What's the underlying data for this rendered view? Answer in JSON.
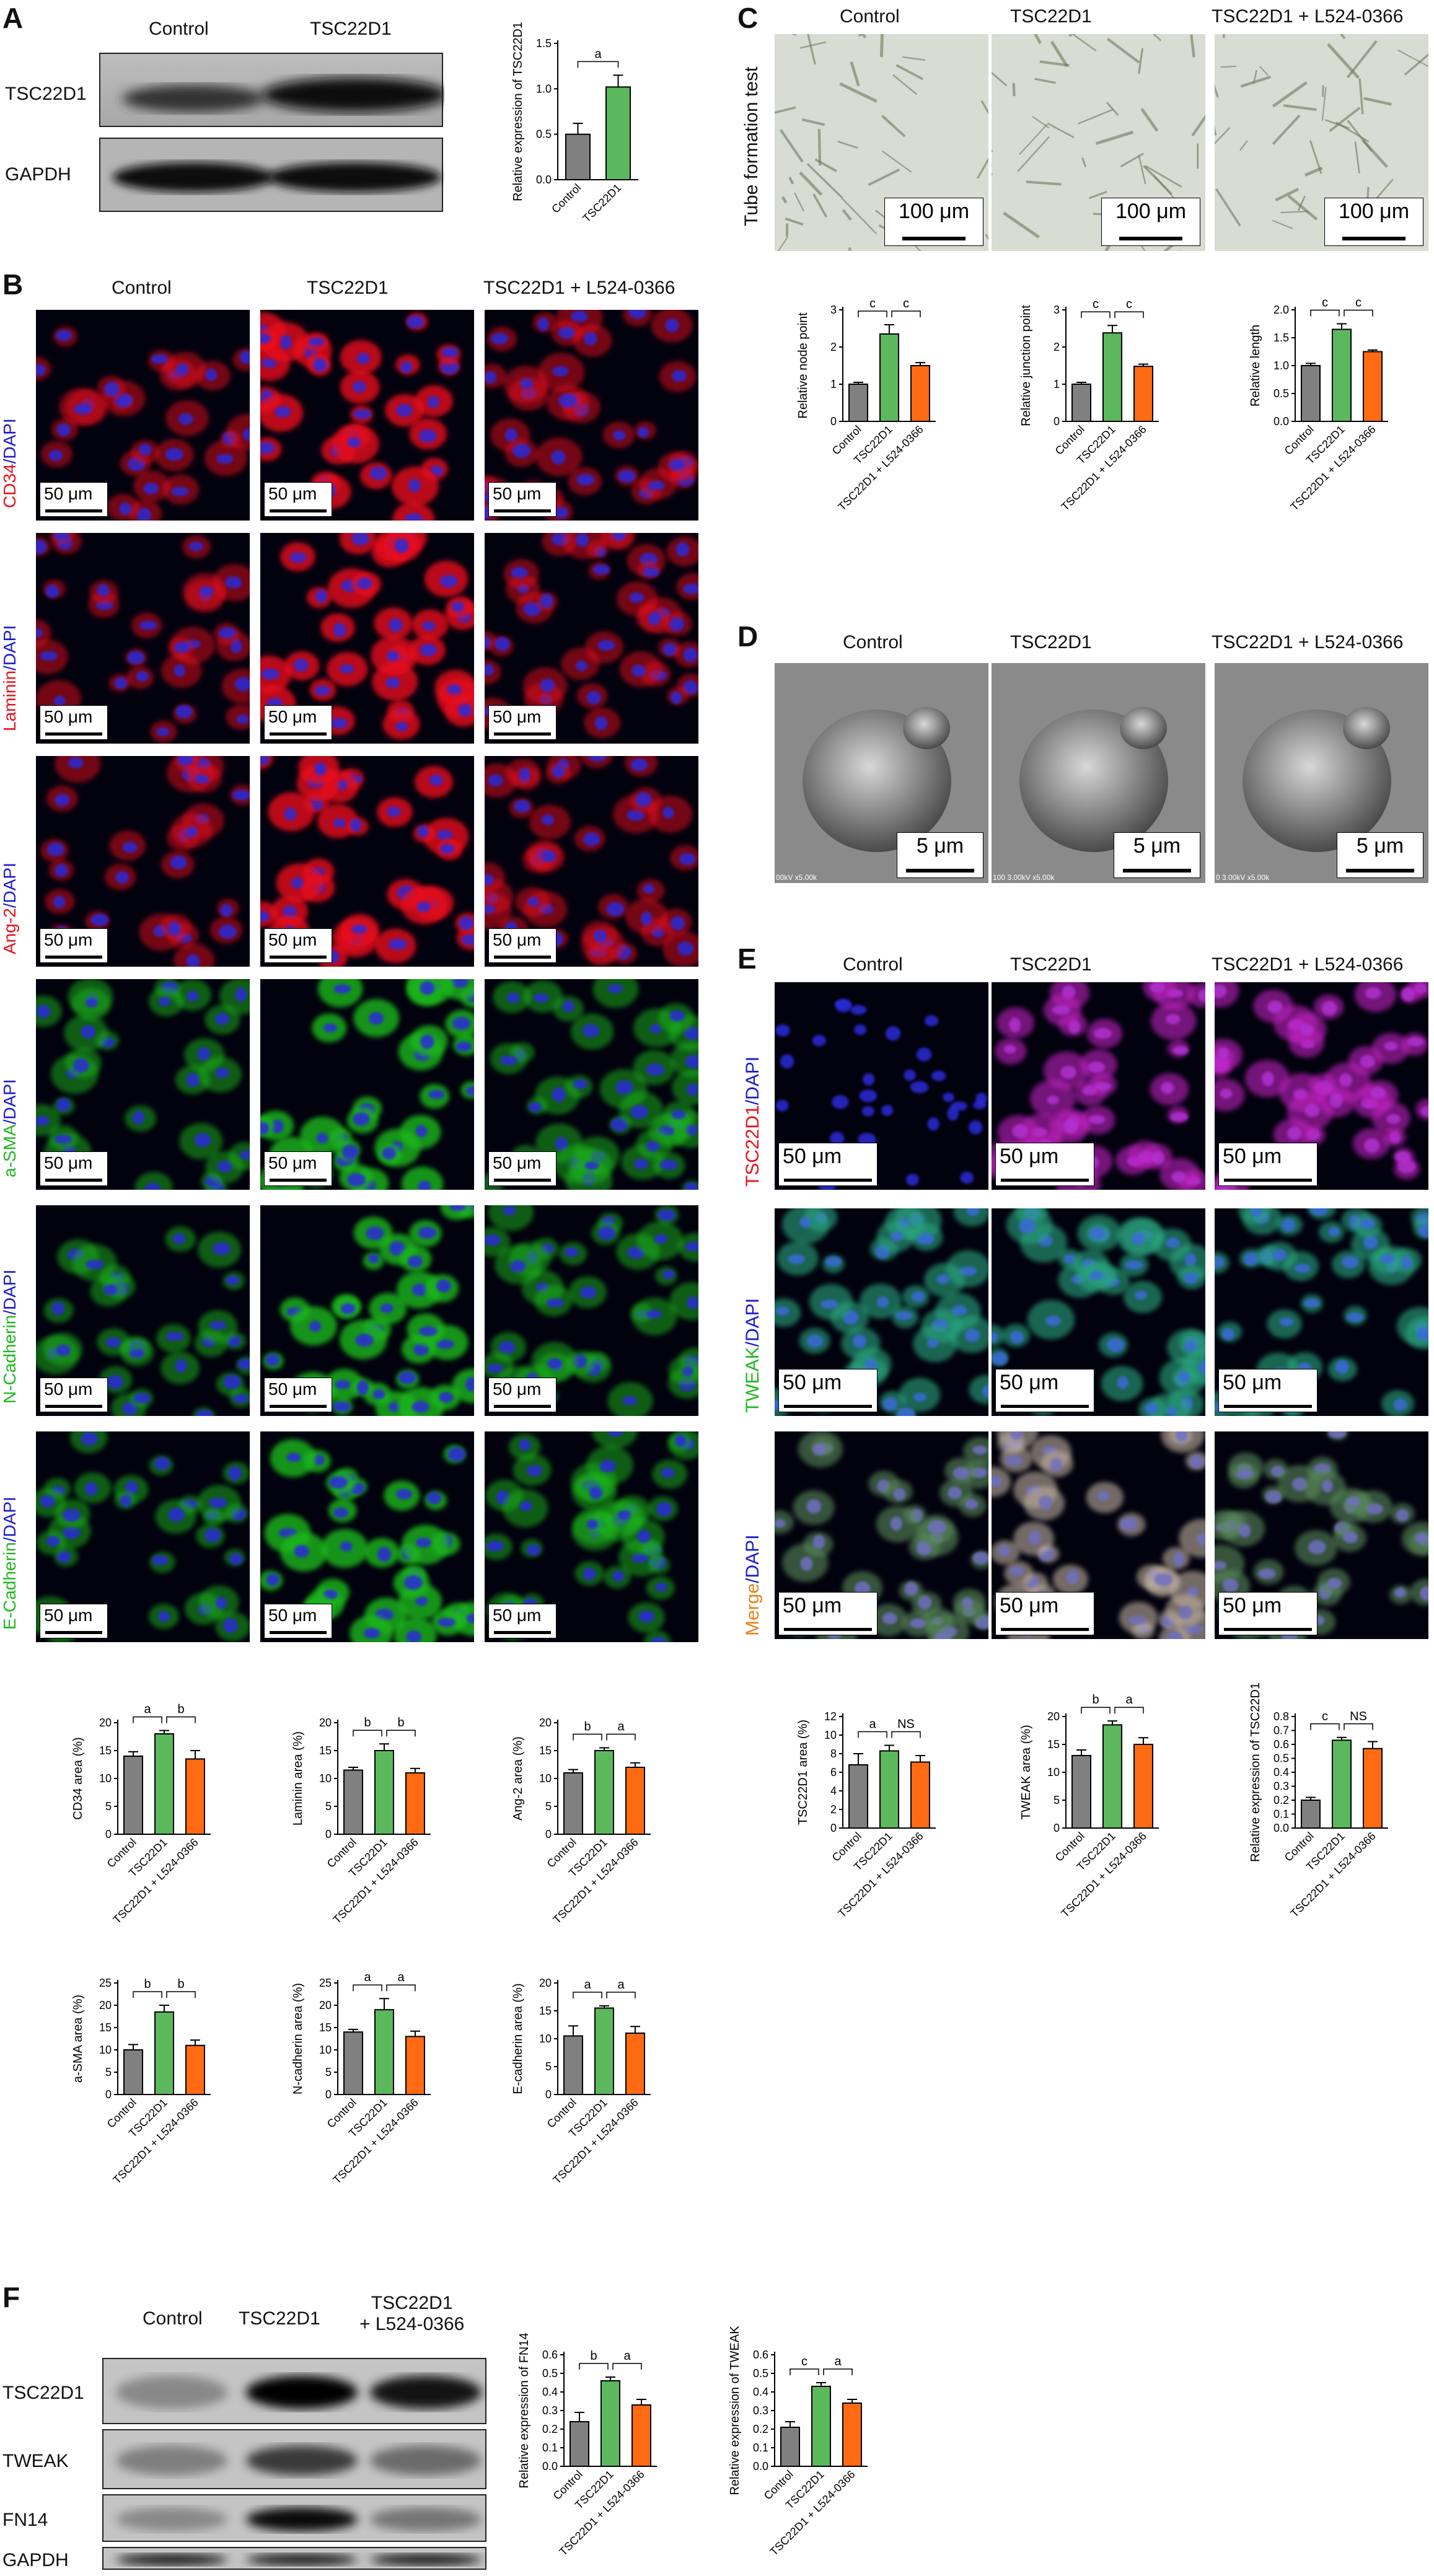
{
  "colors": {
    "control": "#808080",
    "tsc22d1": "#5cb85c",
    "inhibitor": "#ff6a13",
    "fluor_red": "#e8101a",
    "fluor_green": "#1fb81f",
    "fluor_blue": "#1a1ad0",
    "merge_orange": "#e8801a"
  },
  "panels": {
    "A": "A",
    "B": "B",
    "C": "C",
    "D": "D",
    "E": "E",
    "F": "F"
  },
  "panelA": {
    "headers": [
      "Control",
      "TSC22D1"
    ],
    "rows": [
      "TSC22D1",
      "GAPDH"
    ]
  },
  "panelB": {
    "headers": [
      "Control",
      "TSC22D1",
      "TSC22D1 + L524-0366"
    ],
    "rows": [
      {
        "marker": "CD34",
        "stain": "/DAPI",
        "color": "red"
      },
      {
        "marker": "Laminin",
        "stain": "/DAPI",
        "color": "red"
      },
      {
        "marker": "Ang-2",
        "stain": "/DAPI",
        "color": "red"
      },
      {
        "marker": "a-SMA",
        "stain": "/DAPI",
        "color": "green"
      },
      {
        "marker": "N-Cadherin",
        "stain": "/DAPI",
        "color": "green"
      },
      {
        "marker": "E-Cadherin",
        "stain": "/DAPI",
        "color": "green"
      }
    ],
    "scalebar": "50 μm"
  },
  "panelC": {
    "headers": [
      "Control",
      "TSC22D1",
      "TSC22D1 + L524-0366"
    ],
    "side_label": "Tube formation test",
    "scalebar": "100 μm"
  },
  "panelD": {
    "headers": [
      "Control",
      "TSC22D1",
      "TSC22D1 + L524-0366"
    ],
    "scalebar": "5 μm",
    "footers": [
      "00kV x5.00k",
      "100 3.00kV x5.00k",
      "0 3.00kV x5.00k"
    ]
  },
  "panelE": {
    "headers": [
      "Control",
      "TSC22D1",
      "TSC22D1 + L524-0366"
    ],
    "rows": [
      {
        "marker": "TSC22D1",
        "stain": "/DAPI",
        "color": "red"
      },
      {
        "marker": "TWEAK",
        "stain": "/DAPI",
        "color": "green"
      },
      {
        "marker": "Merge",
        "stain": "/DAPI",
        "color": "orange"
      }
    ],
    "scalebar": "50 μm"
  },
  "panelF": {
    "headers": [
      "Control",
      "TSC22D1",
      "TSC22D1\n+ L524-0366"
    ],
    "header_line1": "TSC22D1",
    "header_line2": "+ L524-0366",
    "rows": [
      "TSC22D1",
      "TWEAK",
      "FN14",
      "GAPDH"
    ]
  },
  "chart_data": [
    {
      "id": "A",
      "type": "bar",
      "categories": [
        "Control",
        "TSC22D1"
      ],
      "values": [
        0.5,
        1.02
      ],
      "errors": [
        0.12,
        0.13
      ],
      "ylabel": "Relative expression of TSC22D1",
      "ylim": [
        0,
        1.5
      ],
      "yticks": [
        "0.0",
        "0.5",
        "1.0",
        "1.5"
      ],
      "sig": [
        {
          "from": 0,
          "to": 1,
          "label": "a"
        }
      ]
    },
    {
      "id": "C1",
      "type": "bar",
      "categories": [
        "Control",
        "TSC22D1",
        "TSC22D1 + L524-0366"
      ],
      "values": [
        1.0,
        2.35,
        1.5
      ],
      "errors": [
        0.05,
        0.25,
        0.08
      ],
      "ylabel": "Relative node point",
      "ylim": [
        0,
        3
      ],
      "yticks": [
        "0",
        "1",
        "2",
        "3"
      ],
      "sig": [
        {
          "from": 0,
          "to": 1,
          "label": "c"
        },
        {
          "from": 1,
          "to": 2,
          "label": "c"
        }
      ]
    },
    {
      "id": "C2",
      "type": "bar",
      "categories": [
        "Control",
        "TSC22D1",
        "TSC22D1 + L524-0366"
      ],
      "values": [
        1.0,
        2.38,
        1.48
      ],
      "errors": [
        0.05,
        0.2,
        0.06
      ],
      "ylabel": "Relative junction point",
      "ylim": [
        0,
        3
      ],
      "yticks": [
        "0",
        "1",
        "2",
        "3"
      ],
      "sig": [
        {
          "from": 0,
          "to": 1,
          "label": "c"
        },
        {
          "from": 1,
          "to": 2,
          "label": "c"
        }
      ]
    },
    {
      "id": "C3",
      "type": "bar",
      "categories": [
        "Control",
        "TSC22D1",
        "TSC22D1 + L524-0366"
      ],
      "values": [
        1.0,
        1.65,
        1.25
      ],
      "errors": [
        0.04,
        0.1,
        0.03
      ],
      "ylabel": "Relative length",
      "ylim": [
        0,
        2.0
      ],
      "yticks": [
        "0.0",
        "0.5",
        "1.0",
        "1.5",
        "2.0"
      ],
      "sig": [
        {
          "from": 0,
          "to": 1,
          "label": "c"
        },
        {
          "from": 1,
          "to": 2,
          "label": "c"
        }
      ]
    },
    {
      "id": "B1",
      "type": "bar",
      "categories": [
        "Control",
        "TSC22D1",
        "TSC22D1 + L524-0366"
      ],
      "values": [
        14,
        18,
        13.5
      ],
      "errors": [
        0.8,
        0.6,
        1.5
      ],
      "ylabel": "CD34 area (%)",
      "ylim": [
        0,
        20
      ],
      "yticks": [
        "0",
        "5",
        "10",
        "15",
        "20"
      ],
      "sig": [
        {
          "from": 0,
          "to": 1,
          "label": "a"
        },
        {
          "from": 1,
          "to": 2,
          "label": "b"
        }
      ]
    },
    {
      "id": "B2",
      "type": "bar",
      "categories": [
        "Control",
        "TSC22D1",
        "TSC22D1 + L524-0366"
      ],
      "values": [
        11.5,
        15,
        11
      ],
      "errors": [
        0.5,
        1.2,
        0.8
      ],
      "ylabel": "Laminin area (%)",
      "ylim": [
        0,
        20
      ],
      "yticks": [
        "0",
        "5",
        "10",
        "15",
        "20"
      ],
      "sig": [
        {
          "from": 0,
          "to": 1,
          "label": "b"
        },
        {
          "from": 1,
          "to": 2,
          "label": "b"
        }
      ]
    },
    {
      "id": "B3",
      "type": "bar",
      "categories": [
        "Control",
        "TSC22D1",
        "TSC22D1 + L524-0366"
      ],
      "values": [
        11,
        15,
        12
      ],
      "errors": [
        0.6,
        0.5,
        0.8
      ],
      "ylabel": "Ang-2 area (%)",
      "ylim": [
        0,
        20
      ],
      "yticks": [
        "0",
        "5",
        "10",
        "15",
        "20"
      ],
      "sig": [
        {
          "from": 0,
          "to": 1,
          "label": "b"
        },
        {
          "from": 1,
          "to": 2,
          "label": "a"
        }
      ]
    },
    {
      "id": "B4",
      "type": "bar",
      "categories": [
        "Control",
        "TSC22D1",
        "TSC22D1 + L524-0366"
      ],
      "values": [
        10,
        18.5,
        11
      ],
      "errors": [
        1.2,
        1.5,
        1.2
      ],
      "ylabel": "a-SMA area (%)",
      "ylim": [
        0,
        25
      ],
      "yticks": [
        "0",
        "5",
        "10",
        "15",
        "20",
        "25"
      ],
      "sig": [
        {
          "from": 0,
          "to": 1,
          "label": "b"
        },
        {
          "from": 1,
          "to": 2,
          "label": "b"
        }
      ]
    },
    {
      "id": "B5",
      "type": "bar",
      "categories": [
        "Control",
        "TSC22D1",
        "TSC22D1 + L524-0366"
      ],
      "values": [
        14,
        19,
        13
      ],
      "errors": [
        0.6,
        2.5,
        1.2
      ],
      "ylabel": "N-cadherin area (%)",
      "ylim": [
        0,
        25
      ],
      "yticks": [
        "0",
        "5",
        "10",
        "15",
        "20",
        "25"
      ],
      "sig": [
        {
          "from": 0,
          "to": 1,
          "label": "a"
        },
        {
          "from": 1,
          "to": 2,
          "label": "a"
        }
      ]
    },
    {
      "id": "B6",
      "type": "bar",
      "categories": [
        "Control",
        "TSC22D1",
        "TSC22D1 + L524-0366"
      ],
      "values": [
        10.5,
        15.5,
        11
      ],
      "errors": [
        1.8,
        0.4,
        1.2
      ],
      "ylabel": "E-cadherin area (%)",
      "ylim": [
        0,
        20
      ],
      "yticks": [
        "0",
        "5",
        "10",
        "15",
        "20"
      ],
      "sig": [
        {
          "from": 0,
          "to": 1,
          "label": "a"
        },
        {
          "from": 1,
          "to": 2,
          "label": "a"
        }
      ]
    },
    {
      "id": "E1",
      "type": "bar",
      "categories": [
        "Control",
        "TSC22D1",
        "TSC22D1 + L524-0366"
      ],
      "values": [
        6.8,
        8.3,
        7.1
      ],
      "errors": [
        1.2,
        0.6,
        0.7
      ],
      "ylabel": "TSC22D1 area (%)",
      "ylim": [
        0,
        12
      ],
      "yticks": [
        "0",
        "2",
        "4",
        "6",
        "8",
        "10",
        "12"
      ],
      "sig": [
        {
          "from": 0,
          "to": 1,
          "label": "a"
        },
        {
          "from": 1,
          "to": 2,
          "label": "NS"
        }
      ]
    },
    {
      "id": "E2",
      "type": "bar",
      "categories": [
        "Control",
        "TSC22D1",
        "TSC22D1 + L524-0366"
      ],
      "values": [
        13,
        18.5,
        15
      ],
      "errors": [
        1.0,
        0.7,
        1.2
      ],
      "ylabel": "TWEAK area (%)",
      "ylim": [
        0,
        20
      ],
      "yticks": [
        "0",
        "5",
        "10",
        "15",
        "20"
      ],
      "sig": [
        {
          "from": 0,
          "to": 1,
          "label": "b"
        },
        {
          "from": 1,
          "to": 2,
          "label": "a"
        }
      ]
    },
    {
      "id": "E3",
      "type": "bar",
      "categories": [
        "Control",
        "TSC22D1",
        "TSC22D1 + L524-0366"
      ],
      "values": [
        0.2,
        0.63,
        0.57
      ],
      "errors": [
        0.02,
        0.02,
        0.05
      ],
      "ylabel": "Relative expression of TSC22D1",
      "ylim": [
        0,
        0.8
      ],
      "yticks": [
        "0.0",
        "0.1",
        "0.2",
        "0.3",
        "0.4",
        "0.5",
        "0.6",
        "0.7",
        "0.8"
      ],
      "sig": [
        {
          "from": 0,
          "to": 1,
          "label": "c"
        },
        {
          "from": 1,
          "to": 2,
          "label": "NS"
        }
      ]
    },
    {
      "id": "F1",
      "type": "bar",
      "categories": [
        "Control",
        "TSC22D1",
        "TSC22D1 + L524-0366"
      ],
      "values": [
        0.24,
        0.46,
        0.33
      ],
      "errors": [
        0.05,
        0.02,
        0.03
      ],
      "ylabel": "Relative expression of FN14",
      "ylim": [
        0,
        0.6
      ],
      "yticks": [
        "0.0",
        "0.1",
        "0.2",
        "0.3",
        "0.4",
        "0.5",
        "0.6"
      ],
      "sig": [
        {
          "from": 0,
          "to": 1,
          "label": "b"
        },
        {
          "from": 1,
          "to": 2,
          "label": "a"
        }
      ]
    },
    {
      "id": "F2",
      "type": "bar",
      "categories": [
        "Control",
        "TSC22D1",
        "TSC22D1 + L524-0366"
      ],
      "values": [
        0.21,
        0.43,
        0.34
      ],
      "errors": [
        0.03,
        0.02,
        0.02
      ],
      "ylabel": "Relative expression of TWEAK",
      "ylim": [
        0,
        0.6
      ],
      "yticks": [
        "0.0",
        "0.1",
        "0.2",
        "0.3",
        "0.4",
        "0.5",
        "0.6"
      ],
      "sig": [
        {
          "from": 0,
          "to": 1,
          "label": "c"
        },
        {
          "from": 1,
          "to": 2,
          "label": "a"
        }
      ]
    }
  ]
}
